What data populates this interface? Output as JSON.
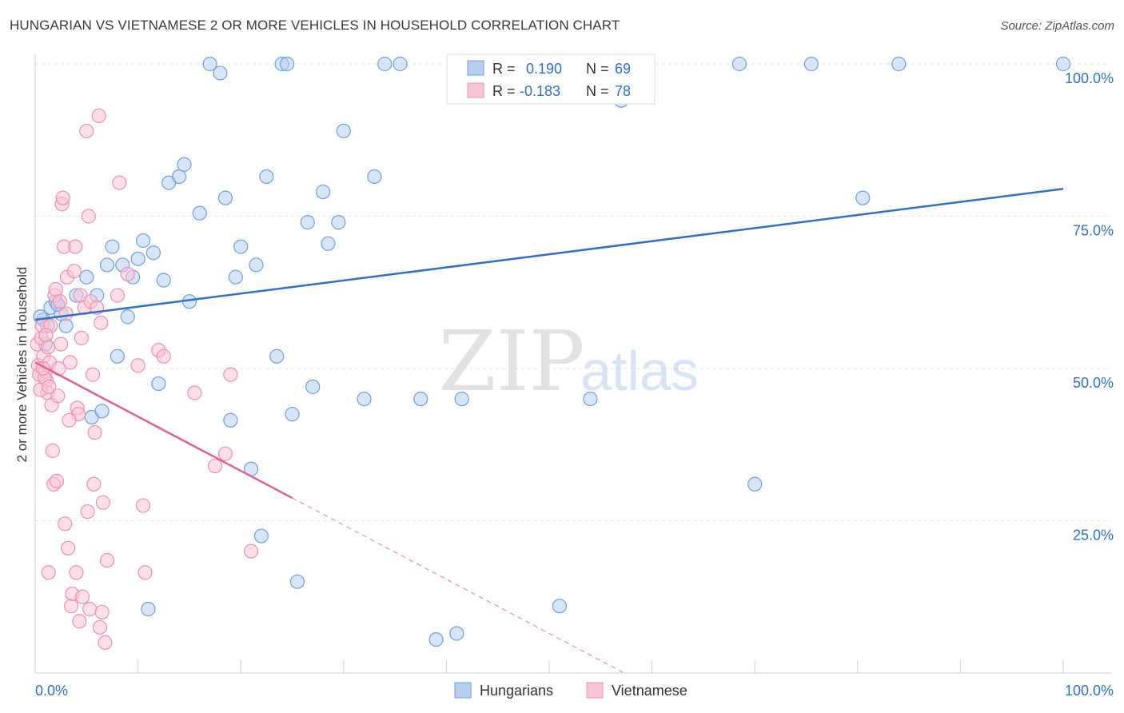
{
  "chart_data": {
    "type": "scatter",
    "title": "HUNGARIAN VS VIETNAMESE 2 OR MORE VEHICLES IN HOUSEHOLD CORRELATION CHART",
    "source": "Source: ZipAtlas.com",
    "ylabel": "2 or more Vehicles in Household",
    "xlabel": "",
    "xlim": [
      0,
      100
    ],
    "ylim": [
      0,
      100
    ],
    "x_tick_labels": {
      "min": "0.0%",
      "max": "100.0%"
    },
    "y_ticks": [
      {
        "value": 25,
        "label": "25.0%"
      },
      {
        "value": 50,
        "label": "50.0%"
      },
      {
        "value": 75,
        "label": "75.0%"
      },
      {
        "value": 100,
        "label": "100.0%"
      }
    ],
    "watermark": {
      "zip": "ZIP",
      "atlas": "atlas"
    },
    "legend_stats": [
      {
        "r_label": "R =",
        "r_value": "0.190",
        "n_label": "N =",
        "n_value": "69"
      },
      {
        "r_label": "R =",
        "r_value": "-0.183",
        "n_label": "N =",
        "n_value": "78"
      }
    ],
    "series": [
      {
        "name": "Hungarians",
        "color": "#6fa0dd",
        "fill": "#b6cff0",
        "line_color": "#2f6fcc",
        "trend": {
          "x0": 0,
          "y0": 58,
          "x1": 100,
          "y1": 79.5,
          "solid_until": 100
        },
        "points": [
          [
            0.8,
            58
          ],
          [
            1,
            54
          ],
          [
            1.5,
            60
          ],
          [
            2,
            61
          ],
          [
            2.5,
            59
          ],
          [
            3,
            57
          ],
          [
            4,
            62
          ],
          [
            5,
            65
          ],
          [
            5.5,
            42
          ],
          [
            6,
            62
          ],
          [
            6.5,
            43
          ],
          [
            7,
            67
          ],
          [
            7.5,
            70
          ],
          [
            8,
            52
          ],
          [
            8.5,
            67
          ],
          [
            9,
            58.5
          ],
          [
            9.5,
            65
          ],
          [
            10,
            68
          ],
          [
            10.5,
            71
          ],
          [
            11,
            10.5
          ],
          [
            11.5,
            69
          ],
          [
            12,
            47.5
          ],
          [
            12.5,
            64.5
          ],
          [
            13,
            80.5
          ],
          [
            14,
            81.5
          ],
          [
            14.5,
            83.5
          ],
          [
            15,
            61
          ],
          [
            16,
            75.5
          ],
          [
            17,
            100
          ],
          [
            18,
            98.5
          ],
          [
            18.5,
            78
          ],
          [
            19,
            41.5
          ],
          [
            19.5,
            65
          ],
          [
            20,
            70
          ],
          [
            21,
            33.5
          ],
          [
            21.5,
            67
          ],
          [
            22,
            22.5
          ],
          [
            22.5,
            81.5
          ],
          [
            23.5,
            52
          ],
          [
            24,
            100
          ],
          [
            24.5,
            100
          ],
          [
            25,
            42.5
          ],
          [
            25.5,
            15
          ],
          [
            26.5,
            74
          ],
          [
            27,
            47
          ],
          [
            28,
            79
          ],
          [
            28.5,
            70.5
          ],
          [
            29.5,
            74
          ],
          [
            30,
            89
          ],
          [
            32,
            45
          ],
          [
            33,
            81.5
          ],
          [
            34,
            100
          ],
          [
            35.5,
            100
          ],
          [
            37.5,
            45
          ],
          [
            39,
            5.5
          ],
          [
            41,
            6.5
          ],
          [
            41.5,
            45
          ],
          [
            51,
            11
          ],
          [
            54,
            45
          ],
          [
            57,
            94
          ],
          [
            68.5,
            100
          ],
          [
            70,
            31
          ],
          [
            75.5,
            100
          ],
          [
            84,
            100
          ],
          [
            80.5,
            78
          ],
          [
            100,
            100
          ],
          [
            0.5,
            58.5
          ],
          [
            2.2,
            60.5
          ],
          [
            1.2,
            57
          ]
        ]
      },
      {
        "name": "Vietnamese",
        "color": "#f08fb0",
        "fill": "#f9c4d6",
        "line_color": "#e0608e",
        "trend": {
          "x0": 0,
          "y0": 51,
          "x1": 100,
          "y1": -38,
          "solid_until": 25
        },
        "points": [
          [
            0.2,
            54
          ],
          [
            0.3,
            50.5
          ],
          [
            0.4,
            49
          ],
          [
            0.6,
            55
          ],
          [
            0.7,
            57
          ],
          [
            0.8,
            52
          ],
          [
            1,
            49.5
          ],
          [
            1.1,
            48
          ],
          [
            1.2,
            46
          ],
          [
            1.3,
            16.5
          ],
          [
            1.4,
            51
          ],
          [
            1.5,
            57
          ],
          [
            1.6,
            44
          ],
          [
            1.7,
            36.5
          ],
          [
            1.8,
            31
          ],
          [
            1.9,
            62
          ],
          [
            2,
            63
          ],
          [
            2.1,
            31.5
          ],
          [
            2.2,
            45.5
          ],
          [
            2.4,
            61
          ],
          [
            2.5,
            54
          ],
          [
            2.6,
            77
          ],
          [
            2.7,
            78
          ],
          [
            2.8,
            70
          ],
          [
            2.9,
            24.5
          ],
          [
            3,
            59
          ],
          [
            3.1,
            65
          ],
          [
            3.2,
            20.5
          ],
          [
            3.4,
            51
          ],
          [
            3.5,
            11
          ],
          [
            3.6,
            13
          ],
          [
            3.8,
            66
          ],
          [
            3.9,
            70
          ],
          [
            4,
            16.5
          ],
          [
            4.1,
            43.5
          ],
          [
            4.2,
            42.5
          ],
          [
            4.3,
            8.5
          ],
          [
            4.4,
            62
          ],
          [
            4.5,
            55
          ],
          [
            4.6,
            12.5
          ],
          [
            4.8,
            60
          ],
          [
            5,
            89
          ],
          [
            5.1,
            26.5
          ],
          [
            5.2,
            75
          ],
          [
            5.3,
            10.5
          ],
          [
            5.4,
            61
          ],
          [
            5.6,
            49
          ],
          [
            5.7,
            31
          ],
          [
            5.8,
            39.5
          ],
          [
            6,
            60
          ],
          [
            6.2,
            91.5
          ],
          [
            6.3,
            7.5
          ],
          [
            6.4,
            57.5
          ],
          [
            6.5,
            10
          ],
          [
            6.6,
            28
          ],
          [
            6.8,
            5
          ],
          [
            7,
            18.5
          ],
          [
            8,
            62
          ],
          [
            8.2,
            80.5
          ],
          [
            9,
            65.5
          ],
          [
            10,
            50.5
          ],
          [
            10.5,
            27.5
          ],
          [
            10.7,
            16.5
          ],
          [
            12,
            53
          ],
          [
            12.5,
            52
          ],
          [
            15.5,
            46
          ],
          [
            17.5,
            34
          ],
          [
            18.5,
            36
          ],
          [
            19,
            49
          ],
          [
            21,
            20
          ],
          [
            0.9,
            48.5
          ],
          [
            1.25,
            53.5
          ],
          [
            2.3,
            50
          ],
          [
            0.5,
            46.5
          ],
          [
            3.3,
            41.5
          ],
          [
            1.05,
            55.5
          ],
          [
            0.75,
            50
          ],
          [
            1.35,
            47
          ]
        ]
      }
    ]
  }
}
